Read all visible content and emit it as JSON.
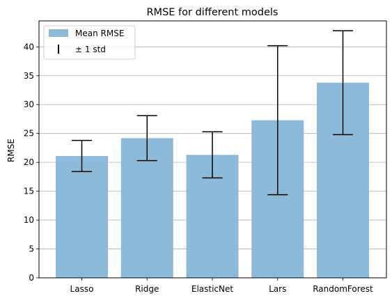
{
  "chart_data": {
    "type": "bar",
    "title": "RMSE for different models",
    "xlabel": "",
    "ylabel": "RMSE",
    "categories": [
      "Lasso",
      "Ridge",
      "ElasticNet",
      "Lars",
      "RandomForest"
    ],
    "values": [
      21.1,
      24.2,
      21.3,
      27.3,
      33.8
    ],
    "errors": [
      2.7,
      3.9,
      4.0,
      12.9,
      9.0
    ],
    "ylim": [
      0,
      44.5
    ],
    "yticks": [
      0,
      5,
      10,
      15,
      20,
      25,
      30,
      35,
      40
    ],
    "grid": "y",
    "legend_position": "top-left",
    "legend": {
      "mean_label": "Mean RMSE",
      "std_label": "± 1 std"
    },
    "colors": {
      "bar": "#8ebad9",
      "error": "#000000",
      "grid": "#b0b0b0"
    }
  }
}
